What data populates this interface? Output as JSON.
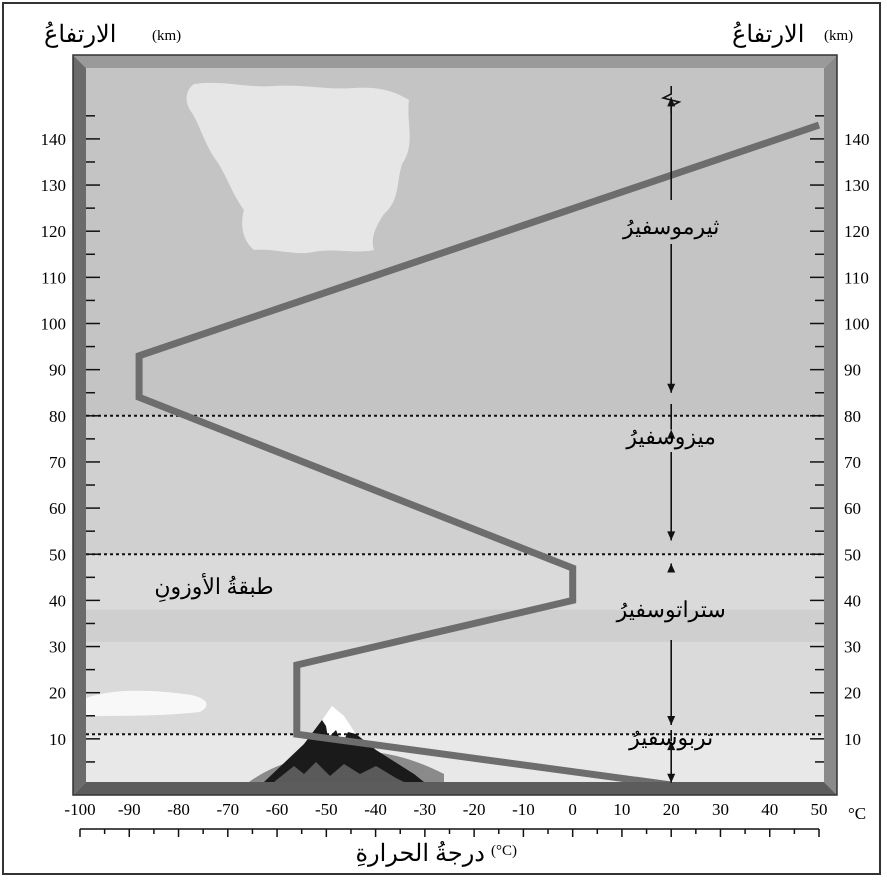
{
  "axis_left_title": "الارتفاعُ",
  "axis_left_unit": "(km)",
  "axis_right_title": "الارتفاعُ",
  "axis_right_unit": "(km)",
  "x_unit_label": "°C",
  "x_axis_title": "درجةُ الحرارةِ",
  "x_axis_title_unit": "(°C)",
  "colors": {
    "thermosphere_bg": "#c4c4c4",
    "mesosphere_bg": "#d0d0d0",
    "stratosphere_bg": "#dadada",
    "ozone_bg": "#cfcfcf",
    "troposphere_bg": "#e8e8e8",
    "curve": "#6d6d6d",
    "frame": "#7a7a7a"
  },
  "layers": {
    "thermosphere": "ثيرموسفيرُ",
    "mesosphere": "ميزوسفيرُ",
    "stratosphere": "ستراتوسفيرُ",
    "troposphere": "تربوسفيرُ",
    "ozone": "طبقةُ الأوزونِ"
  },
  "chart_data": {
    "type": "line",
    "xlim": [
      -100,
      50
    ],
    "ylim": [
      0,
      150
    ],
    "x_ticks": [
      "-100",
      "-90",
      "-80",
      "-70",
      "-60",
      "-50",
      "-40",
      "-30",
      "-20",
      "-10",
      "0",
      "10",
      "20",
      "30",
      "40",
      "50"
    ],
    "y_ticks": [
      "10",
      "20",
      "30",
      "40",
      "50",
      "60",
      "70",
      "80",
      "90",
      "100",
      "110",
      "120",
      "130",
      "140"
    ],
    "boundaries_km": [
      11,
      50,
      80
    ],
    "ozone_layer_km": [
      31,
      38
    ],
    "temperature_profile": {
      "x": [
        20,
        -56,
        -56,
        0,
        0,
        -88,
        -88,
        50
      ],
      "y": [
        0,
        11,
        26,
        40,
        47,
        84,
        93,
        143
      ]
    }
  }
}
